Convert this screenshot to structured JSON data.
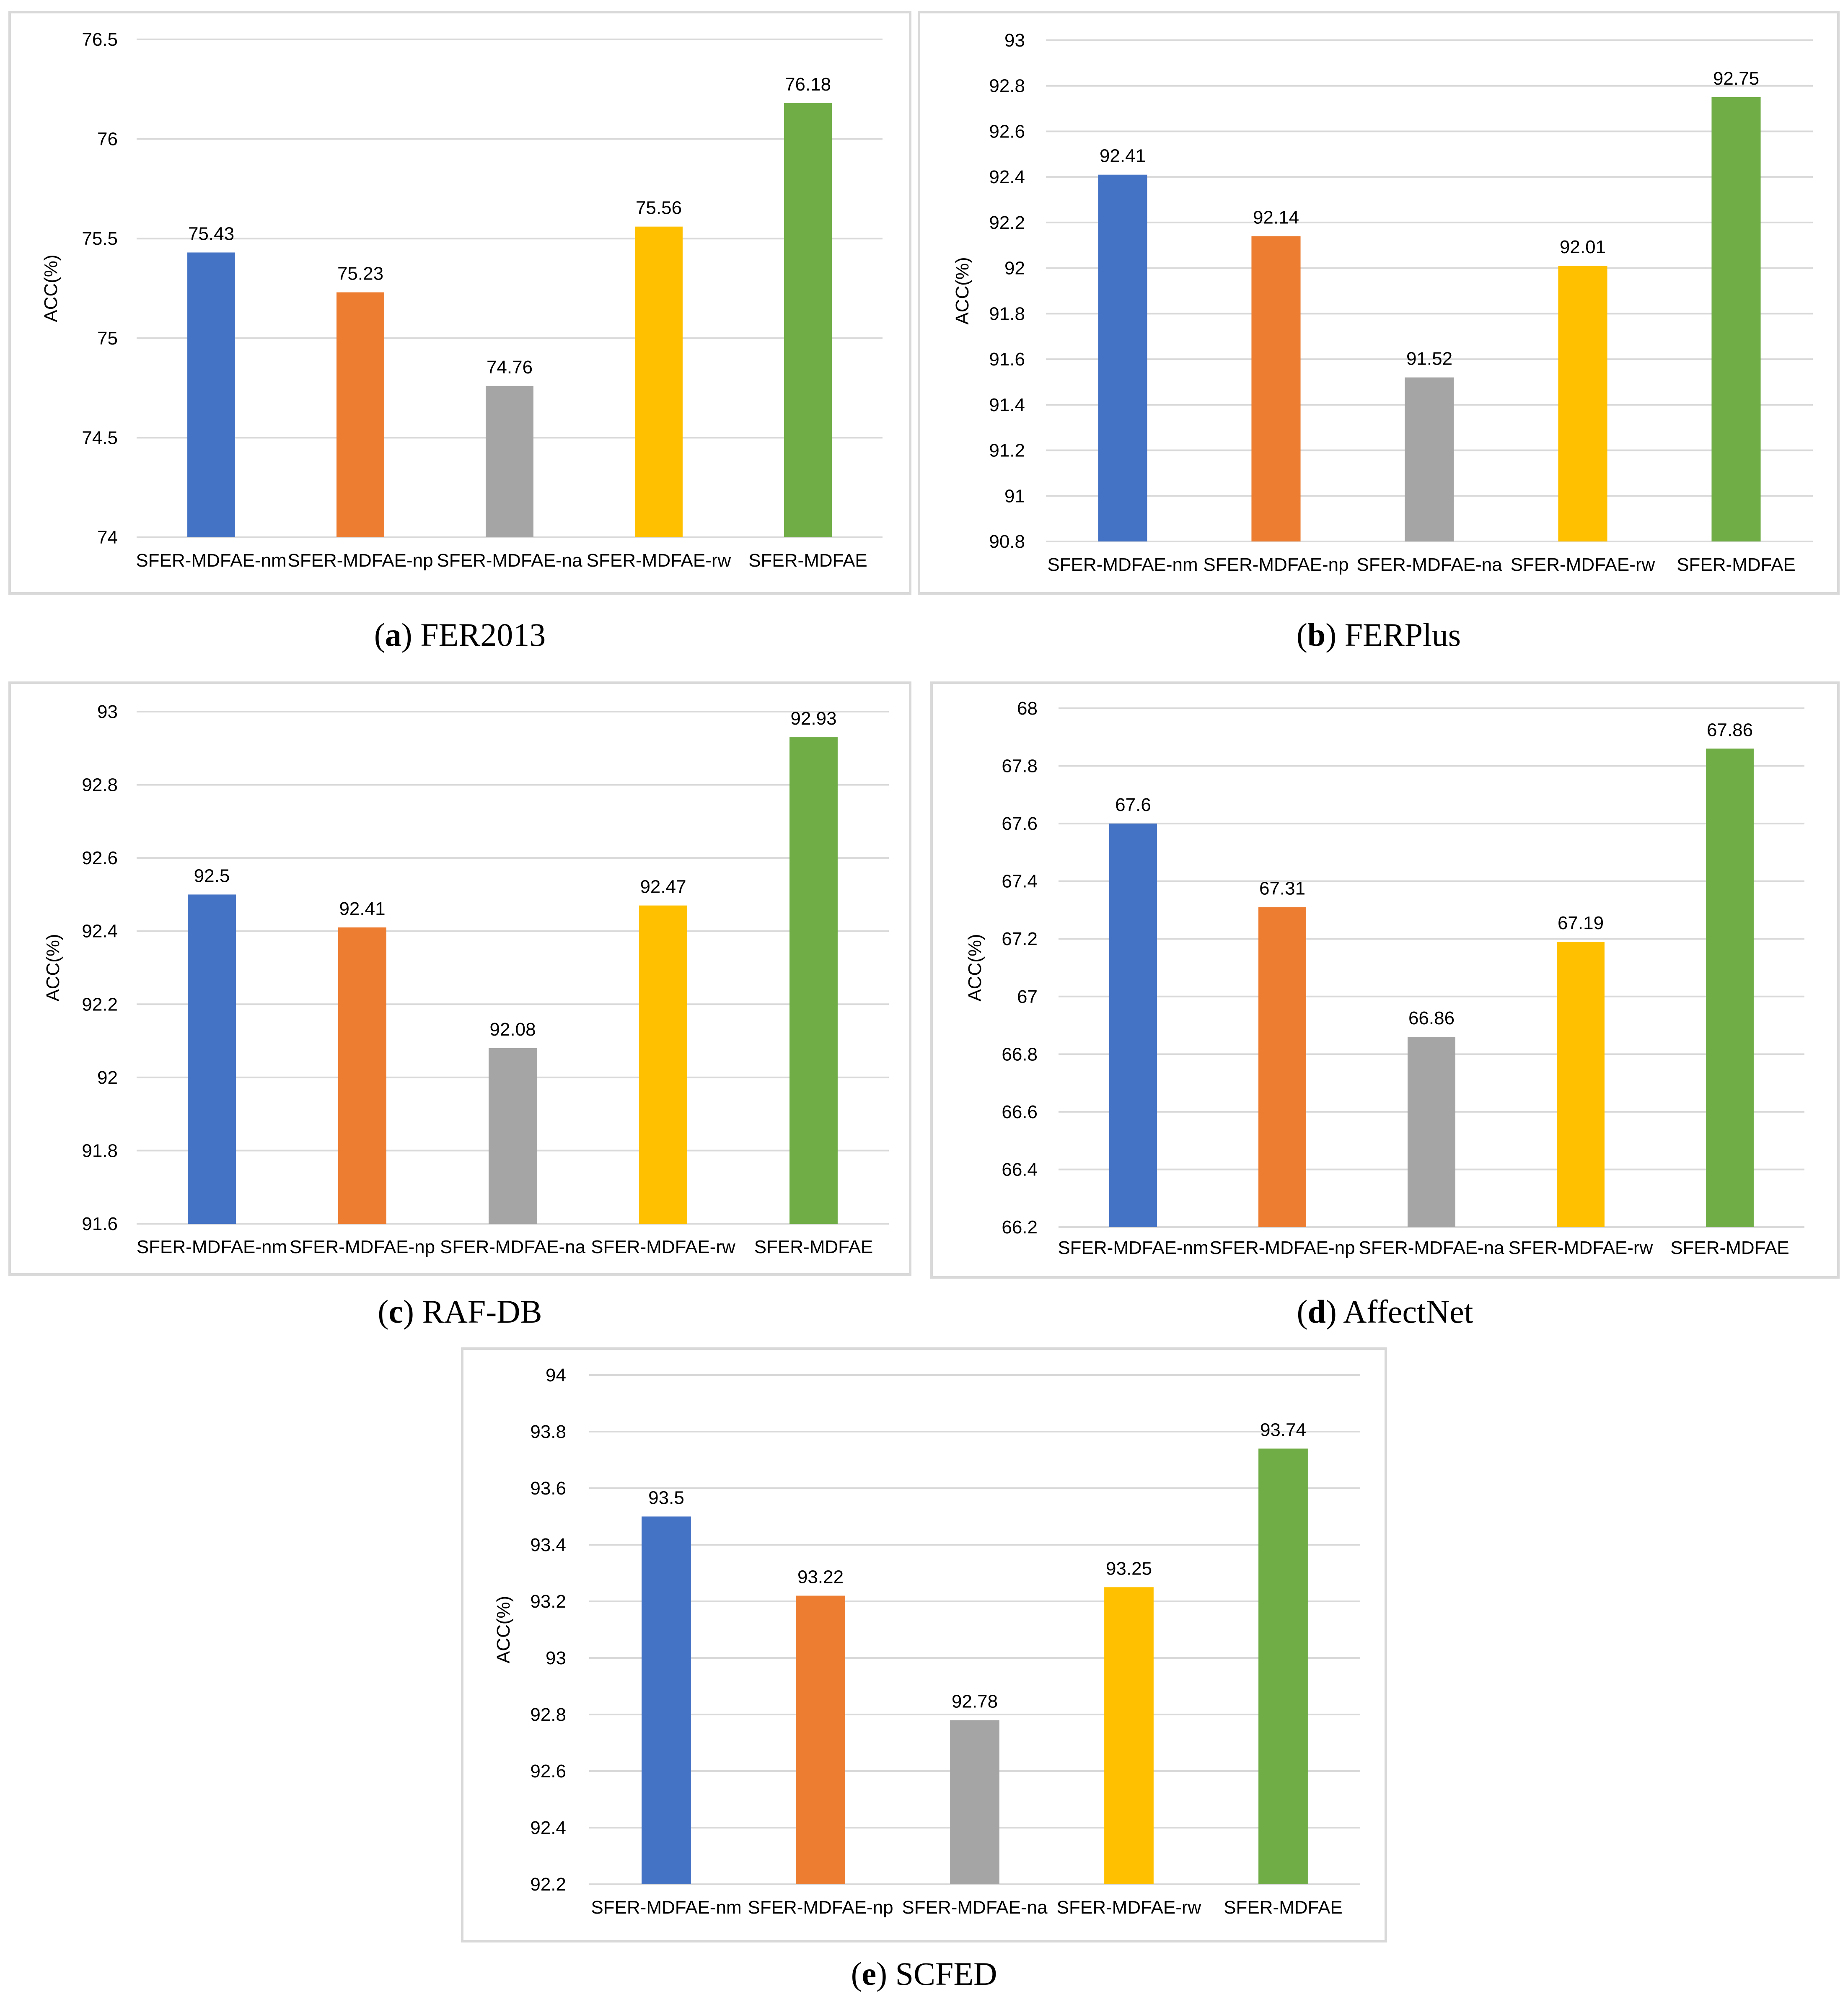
{
  "colors": {
    "series": [
      "#4472c4",
      "#ed7d31",
      "#a5a5a5",
      "#ffc000",
      "#70ad47"
    ],
    "grid": "#d9d9d9"
  },
  "chart_data": [
    {
      "id": "a",
      "type": "bar",
      "caption_letter": "a",
      "caption_text": "FER2013",
      "ylabel": "ACC(%)",
      "xlabel": "",
      "categories": [
        "SFER-MDFAE-nm",
        "SFER-MDFAE-np",
        "SFER-MDFAE-na",
        "SFER-MDFAE-rw",
        "SFER-MDFAE"
      ],
      "values": [
        75.43,
        75.23,
        74.76,
        75.56,
        76.18
      ],
      "data_labels": [
        "75.43",
        "75.23",
        "74.76",
        "75.56",
        "76.18"
      ],
      "ylim": [
        74,
        76.5
      ],
      "ticks": [
        "74",
        "74.5",
        "75",
        "75.5",
        "76",
        "76.5"
      ],
      "grid": true,
      "legend": "none"
    },
    {
      "id": "b",
      "type": "bar",
      "caption_letter": "b",
      "caption_text": "FERPlus",
      "ylabel": "ACC(%)",
      "xlabel": "",
      "categories": [
        "SFER-MDFAE-nm",
        "SFER-MDFAE-np",
        "SFER-MDFAE-na",
        "SFER-MDFAE-rw",
        "SFER-MDFAE"
      ],
      "values": [
        92.41,
        92.14,
        91.52,
        92.01,
        92.75
      ],
      "data_labels": [
        "92.41",
        "92.14",
        "91.52",
        "92.01",
        "92.75"
      ],
      "ylim": [
        90.8,
        93
      ],
      "ticks": [
        "90.8",
        "91",
        "91.2",
        "91.4",
        "91.6",
        "91.8",
        "92",
        "92.2",
        "92.4",
        "92.6",
        "92.8",
        "93"
      ],
      "grid": true,
      "legend": "none"
    },
    {
      "id": "c",
      "type": "bar",
      "caption_letter": "c",
      "caption_text": "RAF-DB",
      "ylabel": "ACC(%)",
      "xlabel": "",
      "categories": [
        "SFER-MDFAE-nm",
        "SFER-MDFAE-np",
        "SFER-MDFAE-na",
        "SFER-MDFAE-rw",
        "SFER-MDFAE"
      ],
      "values": [
        92.5,
        92.41,
        92.08,
        92.47,
        92.93
      ],
      "data_labels": [
        "92.5",
        "92.41",
        "92.08",
        "92.47",
        "92.93"
      ],
      "ylim": [
        91.6,
        93
      ],
      "ticks": [
        "91.6",
        "91.8",
        "92",
        "92.2",
        "92.4",
        "92.6",
        "92.8",
        "93"
      ],
      "grid": true,
      "legend": "none"
    },
    {
      "id": "d",
      "type": "bar",
      "caption_letter": "d",
      "caption_text": "AffectNet",
      "ylabel": "ACC(%)",
      "xlabel": "",
      "categories": [
        "SFER-MDFAE-nm",
        "SFER-MDFAE-np",
        "SFER-MDFAE-na",
        "SFER-MDFAE-rw",
        "SFER-MDFAE"
      ],
      "values": [
        67.6,
        67.31,
        66.86,
        67.19,
        67.86
      ],
      "data_labels": [
        "67.6",
        "67.31",
        "66.86",
        "67.19",
        "67.86"
      ],
      "ylim": [
        66.2,
        68
      ],
      "ticks": [
        "66.2",
        "66.4",
        "66.6",
        "66.8",
        "67",
        "67.2",
        "67.4",
        "67.6",
        "67.8",
        "68"
      ],
      "grid": true,
      "legend": "none"
    },
    {
      "id": "e",
      "type": "bar",
      "caption_letter": "e",
      "caption_text": "SCFED",
      "ylabel": "ACC(%)",
      "xlabel": "",
      "categories": [
        "SFER-MDFAE-nm",
        "SFER-MDFAE-np",
        "SFER-MDFAE-na",
        "SFER-MDFAE-rw",
        "SFER-MDFAE"
      ],
      "values": [
        93.5,
        93.22,
        92.78,
        93.25,
        93.74
      ],
      "data_labels": [
        "93.5",
        "93.22",
        "92.78",
        "93.25",
        "93.74"
      ],
      "ylim": [
        92.2,
        94
      ],
      "ticks": [
        "92.2",
        "92.4",
        "92.6",
        "92.8",
        "93",
        "93.2",
        "93.4",
        "93.6",
        "93.8",
        "94"
      ],
      "grid": true,
      "legend": "none"
    }
  ]
}
